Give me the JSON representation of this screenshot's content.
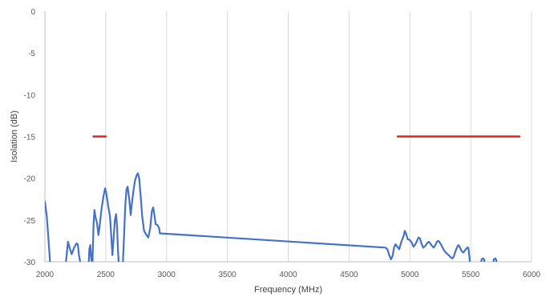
{
  "chart_data": {
    "type": "line",
    "title": "",
    "xlabel": "Frequency (MHz)",
    "ylabel": "Isolation (dB)",
    "xlim": [
      2000,
      6000
    ],
    "ylim": [
      -30,
      0
    ],
    "x_ticks": [
      "2000",
      "2500",
      "3000",
      "3500",
      "4000",
      "4500",
      "5000",
      "5500",
      "6000"
    ],
    "y_ticks": [
      "0",
      "-5",
      "-10",
      "-15",
      "-20",
      "-25",
      "-30"
    ],
    "grid": "vertical",
    "legend": "none",
    "colors": {
      "measured": "#4472c4",
      "spec": "#e0231e"
    },
    "series": [
      {
        "color": "#4472c4",
        "points": [
          [
            2000,
            -22.8
          ],
          [
            2015,
            -24.5
          ],
          [
            2030,
            -27.5
          ],
          [
            2045,
            -30.5
          ],
          [
            2170,
            -30.5
          ],
          [
            2180,
            -29
          ],
          [
            2190,
            -27.6
          ],
          [
            2205,
            -28.4
          ],
          [
            2220,
            -29.1
          ],
          [
            2240,
            -28.3
          ],
          [
            2260,
            -27.8
          ],
          [
            2270,
            -27.9
          ],
          [
            2280,
            -29.2
          ],
          [
            2290,
            -30
          ],
          [
            2300,
            -30.5
          ],
          [
            2360,
            -30.5
          ],
          [
            2365,
            -28.5
          ],
          [
            2373,
            -28
          ],
          [
            2380,
            -29.5
          ],
          [
            2390,
            -30.5
          ],
          [
            2400,
            -25.5
          ],
          [
            2407,
            -23.8
          ],
          [
            2415,
            -24.6
          ],
          [
            2428,
            -25.3
          ],
          [
            2440,
            -26.8
          ],
          [
            2450,
            -25.7
          ],
          [
            2465,
            -23.7
          ],
          [
            2480,
            -22.3
          ],
          [
            2495,
            -21.2
          ],
          [
            2505,
            -21.8
          ],
          [
            2520,
            -23.3
          ],
          [
            2535,
            -24.6
          ],
          [
            2545,
            -26.8
          ],
          [
            2555,
            -29.2
          ],
          [
            2565,
            -27.2
          ],
          [
            2575,
            -25
          ],
          [
            2585,
            -24.3
          ],
          [
            2593,
            -25.8
          ],
          [
            2600,
            -28.5
          ],
          [
            2608,
            -30.5
          ],
          [
            2640,
            -30.5
          ],
          [
            2652,
            -26.5
          ],
          [
            2660,
            -23.4
          ],
          [
            2670,
            -21.4
          ],
          [
            2680,
            -21
          ],
          [
            2693,
            -22.5
          ],
          [
            2705,
            -24.4
          ],
          [
            2715,
            -23
          ],
          [
            2727,
            -21.6
          ],
          [
            2740,
            -20.3
          ],
          [
            2755,
            -19.6
          ],
          [
            2765,
            -19.4
          ],
          [
            2775,
            -20
          ],
          [
            2788,
            -22.3
          ],
          [
            2800,
            -24.6
          ],
          [
            2815,
            -26.3
          ],
          [
            2835,
            -26.8
          ],
          [
            2850,
            -27.1
          ],
          [
            2865,
            -26
          ],
          [
            2880,
            -23.9
          ],
          [
            2890,
            -23.5
          ],
          [
            2900,
            -24.4
          ],
          [
            2910,
            -25.5
          ],
          [
            2925,
            -25.6
          ],
          [
            2940,
            -26
          ],
          [
            2945,
            -26.6
          ],
          [
            4800,
            -28.3
          ],
          [
            4815,
            -28.5
          ],
          [
            4830,
            -29.2
          ],
          [
            4845,
            -29.7
          ],
          [
            4858,
            -29.3
          ],
          [
            4870,
            -28.3
          ],
          [
            4882,
            -27.9
          ],
          [
            4897,
            -28.2
          ],
          [
            4912,
            -28.5
          ],
          [
            4930,
            -27.6
          ],
          [
            4948,
            -26.9
          ],
          [
            4958,
            -26.3
          ],
          [
            4970,
            -26.7
          ],
          [
            4982,
            -27.3
          ],
          [
            5000,
            -27.4
          ],
          [
            5015,
            -27.7
          ],
          [
            5030,
            -28.2
          ],
          [
            5045,
            -27.9
          ],
          [
            5058,
            -27.5
          ],
          [
            5070,
            -27.1
          ],
          [
            5083,
            -27.2
          ],
          [
            5097,
            -27.9
          ],
          [
            5110,
            -28.3
          ],
          [
            5127,
            -28.1
          ],
          [
            5140,
            -27.8
          ],
          [
            5155,
            -27.6
          ],
          [
            5168,
            -27.8
          ],
          [
            5182,
            -28.1
          ],
          [
            5195,
            -28.3
          ],
          [
            5210,
            -28
          ],
          [
            5222,
            -27.6
          ],
          [
            5235,
            -27.5
          ],
          [
            5250,
            -27.8
          ],
          [
            5265,
            -28.2
          ],
          [
            5280,
            -28.6
          ],
          [
            5295,
            -28.9
          ],
          [
            5310,
            -29.1
          ],
          [
            5325,
            -29.3
          ],
          [
            5338,
            -29.5
          ],
          [
            5350,
            -29.6
          ],
          [
            5360,
            -29.4
          ],
          [
            5375,
            -28.7
          ],
          [
            5390,
            -28.2
          ],
          [
            5400,
            -28
          ],
          [
            5412,
            -28.3
          ],
          [
            5425,
            -28.7
          ],
          [
            5440,
            -28.9
          ],
          [
            5455,
            -28.6
          ],
          [
            5470,
            -28.3
          ],
          [
            5480,
            -28.3
          ],
          [
            5490,
            -29.5
          ],
          [
            5495,
            -30.5
          ],
          [
            5580,
            -30.5
          ],
          [
            5590,
            -29.7
          ],
          [
            5600,
            -29.6
          ],
          [
            5610,
            -29.7
          ],
          [
            5615,
            -30.5
          ],
          [
            5680,
            -30.5
          ],
          [
            5690,
            -29.7
          ],
          [
            5702,
            -29.6
          ],
          [
            5710,
            -29.8
          ],
          [
            5715,
            -30.5
          ]
        ]
      },
      {
        "color": "#e0231e",
        "points": [
          [
            2400,
            -15
          ],
          [
            2500,
            -15
          ]
        ]
      },
      {
        "color": "#e0231e",
        "points": [
          [
            4900,
            -15
          ],
          [
            5900,
            -15
          ]
        ]
      }
    ]
  }
}
